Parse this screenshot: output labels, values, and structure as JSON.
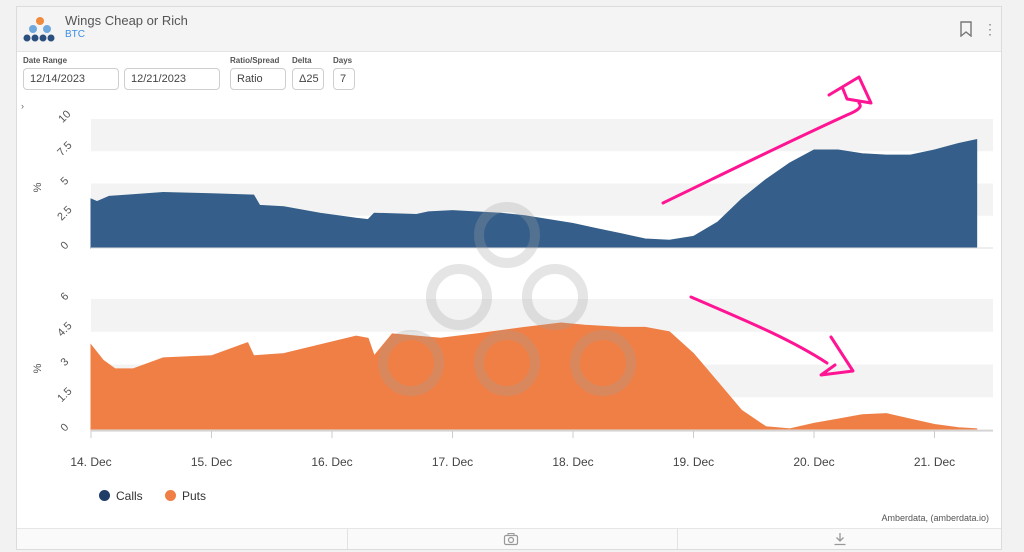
{
  "header": {
    "title": "Wings Cheap or Rich",
    "subtitle": "BTC"
  },
  "controls": {
    "date_range_label": "Date Range",
    "start_date": "12/14/2023",
    "end_date": "12/21/2023",
    "ratio_label": "Ratio/Spread",
    "ratio_value": "Ratio",
    "delta_label": "Delta",
    "delta_value": "Δ25",
    "days_label": "Days",
    "days_value": "7"
  },
  "legend": {
    "calls": "Calls",
    "puts": "Puts"
  },
  "credit": "Amberdata, (amberdata.io)",
  "colors": {
    "calls": "#355f8a",
    "puts": "#ef7f45",
    "annotation": "#ff1493"
  },
  "icons": [
    "bookmark-icon",
    "kebab-menu-icon",
    "camera-icon",
    "download-icon",
    "amberdata-logo-icon"
  ],
  "chart_data": [
    {
      "type": "area",
      "name": "calls-panel",
      "ylabel": "%",
      "ylim": [
        0,
        10
      ],
      "yticks": [
        0,
        2.5,
        5,
        7.5,
        10
      ],
      "x_unit": "day index from 14 Dec",
      "x_ticks": [
        "14. Dec",
        "15. Dec",
        "16. Dec",
        "17. Dec",
        "18. Dec",
        "19. Dec",
        "20. Dec",
        "21. Dec"
      ],
      "series": [
        {
          "name": "Calls",
          "x": [
            0,
            0.05,
            0.15,
            0.3,
            0.6,
            1.0,
            1.35,
            1.4,
            1.6,
            1.9,
            2.2,
            2.3,
            2.35,
            2.7,
            2.8,
            3.0,
            3.4,
            3.6,
            3.8,
            4.0,
            4.2,
            4.4,
            4.6,
            4.8,
            5.0,
            5.2,
            5.4,
            5.6,
            5.8,
            6.0,
            6.2,
            6.4,
            6.6,
            6.8,
            7.0,
            7.2,
            7.35
          ],
          "y": [
            3.8,
            3.6,
            4.0,
            4.1,
            4.3,
            4.2,
            4.1,
            3.3,
            3.2,
            2.7,
            2.3,
            2.2,
            2.7,
            2.6,
            2.8,
            2.9,
            2.7,
            2.5,
            2.2,
            1.9,
            1.5,
            1.1,
            0.7,
            0.6,
            0.9,
            2.0,
            3.8,
            5.3,
            6.6,
            7.6,
            7.6,
            7.3,
            7.2,
            7.2,
            7.6,
            8.1,
            8.4
          ]
        }
      ]
    },
    {
      "type": "area",
      "name": "puts-panel",
      "ylabel": "%",
      "ylim": [
        0,
        6
      ],
      "yticks": [
        0,
        1.5,
        3,
        4.5,
        6
      ],
      "x_unit": "day index from 14 Dec",
      "x_ticks": [
        "14. Dec",
        "15. Dec",
        "16. Dec",
        "17. Dec",
        "18. Dec",
        "19. Dec",
        "20. Dec",
        "21. Dec"
      ],
      "series": [
        {
          "name": "Puts",
          "x": [
            0,
            0.1,
            0.2,
            0.35,
            0.6,
            1.0,
            1.25,
            1.3,
            1.35,
            1.6,
            1.9,
            2.2,
            2.3,
            2.35,
            2.5,
            2.9,
            3.2,
            3.6,
            3.9,
            4.1,
            4.4,
            4.6,
            4.8,
            5.0,
            5.2,
            5.4,
            5.6,
            5.8,
            6.0,
            6.2,
            6.4,
            6.6,
            6.8,
            7.0,
            7.2,
            7.35
          ],
          "y": [
            3.9,
            3.2,
            2.8,
            2.8,
            3.3,
            3.4,
            3.9,
            4.0,
            3.4,
            3.5,
            3.9,
            4.3,
            4.2,
            3.4,
            4.4,
            4.2,
            4.4,
            4.7,
            4.9,
            4.8,
            4.7,
            4.7,
            4.5,
            3.5,
            2.2,
            0.9,
            0.15,
            0.05,
            0.3,
            0.5,
            0.7,
            0.75,
            0.5,
            0.25,
            0.1,
            0.05
          ]
        }
      ]
    }
  ]
}
